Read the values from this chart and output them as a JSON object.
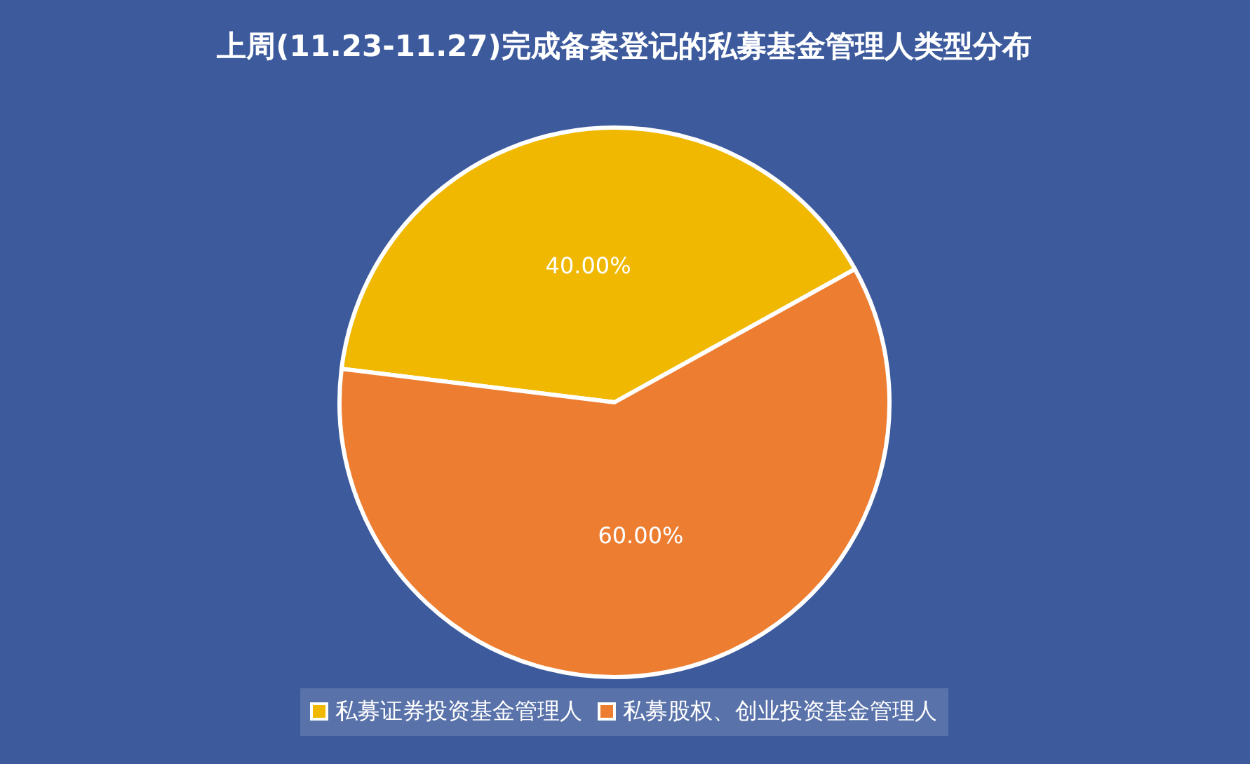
{
  "chart_data": {
    "type": "pie",
    "title": "上周(11.23-11.27)完成备案登记的私募基金管理人类型分布",
    "categories": [
      "私募证券投资基金管理人",
      "私募股权、创业投资基金管理人"
    ],
    "values": [
      40,
      60
    ],
    "colors": [
      "#f0b800",
      "#ed7d31"
    ],
    "value_labels": [
      "40.00%",
      "60.00%"
    ],
    "legend": "bottom"
  }
}
